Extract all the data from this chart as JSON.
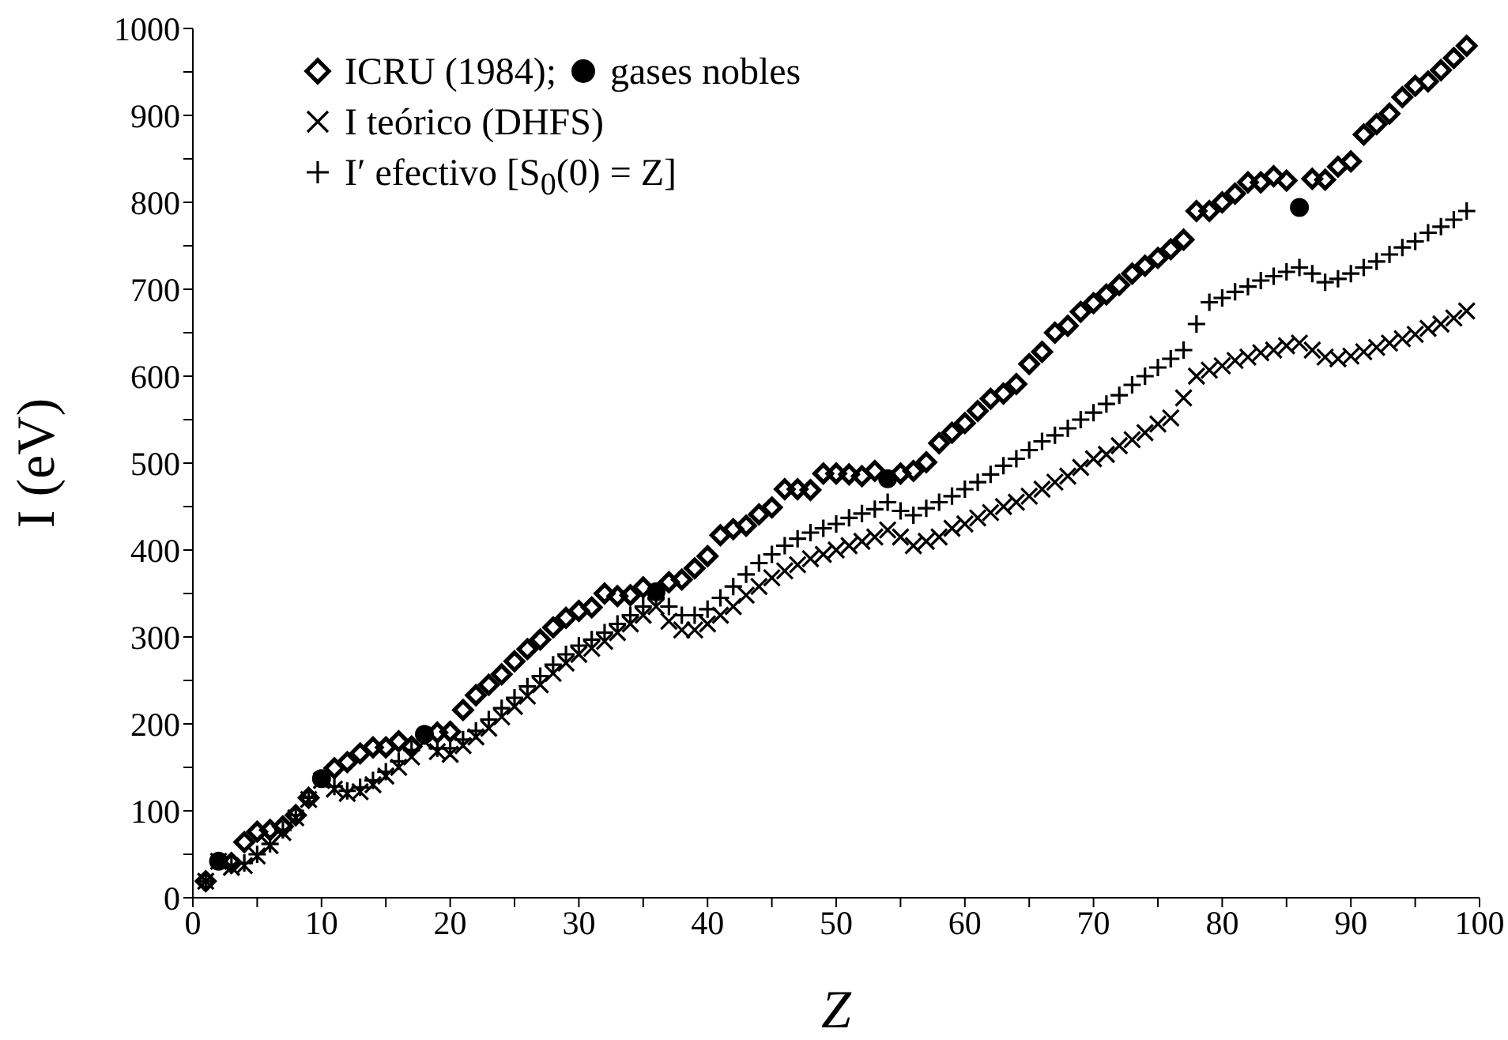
{
  "chart_data": {
    "type": "scatter",
    "xlabel": "Z",
    "ylabel": "I (eV)",
    "xlim": [
      0,
      100
    ],
    "ylim": [
      0,
      1000
    ],
    "xticks": [
      0,
      {
        "value": 5,
        "label": null
      },
      10,
      {
        "value": 15,
        "label": null
      },
      20,
      {
        "value": 25,
        "label": null
      },
      30,
      {
        "value": 35,
        "label": null
      },
      40,
      {
        "value": 45,
        "label": null
      },
      50,
      {
        "value": 55,
        "label": null
      },
      60,
      {
        "value": 65,
        "label": null
      },
      70,
      {
        "value": 75,
        "label": null
      },
      80,
      {
        "value": 85,
        "label": null
      },
      90,
      {
        "value": 95,
        "label": null
      },
      100
    ],
    "yticks": [
      0,
      {
        "value": 50,
        "label": null
      },
      100,
      {
        "value": 150,
        "label": null
      },
      200,
      {
        "value": 250,
        "label": null
      },
      300,
      {
        "value": 350,
        "label": null
      },
      400,
      {
        "value": 450,
        "label": null
      },
      500,
      {
        "value": 550,
        "label": null
      },
      600,
      {
        "value": 650,
        "label": null
      },
      700,
      {
        "value": 750,
        "label": null
      },
      800,
      {
        "value": 850,
        "label": null
      },
      900,
      {
        "value": 950,
        "label": null
      },
      1000
    ],
    "grid": false,
    "legend": "top left",
    "series": [
      {
        "name": "ICRU (1984);",
        "color": "#000000",
        "marker": "diamond",
        "x": [
          1,
          3,
          4,
          5,
          6,
          7,
          8,
          9,
          11,
          12,
          13,
          14,
          15,
          16,
          17,
          19,
          20,
          21,
          22,
          23,
          24,
          25,
          26,
          27,
          28,
          29,
          30,
          31,
          32,
          33,
          34,
          35,
          37,
          38,
          39,
          40,
          41,
          42,
          43,
          44,
          45,
          46,
          47,
          48,
          49,
          50,
          51,
          52,
          53,
          55,
          56,
          57,
          58,
          59,
          60,
          61,
          62,
          63,
          64,
          65,
          66,
          67,
          68,
          69,
          70,
          71,
          72,
          73,
          74,
          75,
          76,
          77,
          78,
          79,
          80,
          81,
          82,
          83,
          84,
          85,
          87,
          88,
          89,
          90,
          91,
          92,
          93,
          94,
          95,
          96,
          97,
          98,
          99
        ],
        "values": [
          19,
          40,
          64,
          76,
          78,
          82,
          95,
          115,
          149,
          156,
          166,
          173,
          173,
          180,
          174,
          190,
          191,
          216,
          233,
          245,
          257,
          272,
          286,
          297,
          311,
          322,
          330,
          334,
          350,
          347,
          348,
          357,
          363,
          366,
          379,
          393,
          417,
          424,
          428,
          441,
          449,
          470,
          470,
          469,
          488,
          488,
          487,
          485,
          491,
          488,
          491,
          501,
          523,
          535,
          546,
          560,
          574,
          580,
          591,
          614,
          628,
          650,
          658,
          674,
          684,
          694,
          705,
          718,
          727,
          736,
          746,
          757,
          790,
          790,
          800,
          810,
          823,
          823,
          830,
          825,
          827,
          826,
          841,
          847,
          878,
          890,
          902,
          921,
          934,
          939,
          952,
          966,
          980
        ]
      },
      {
        "name": "gases nobles",
        "color": "#000000",
        "marker": "circle",
        "x": [
          2,
          10,
          18,
          36,
          54,
          86
        ],
        "values": [
          42,
          137,
          188,
          352,
          482,
          794
        ]
      },
      {
        "name": "I teórico (DHFS)",
        "color": "#000000",
        "marker": "x",
        "x": [
          1,
          2,
          3,
          4,
          5,
          6,
          7,
          8,
          9,
          10,
          11,
          12,
          13,
          14,
          15,
          16,
          17,
          18,
          19,
          20,
          21,
          22,
          23,
          24,
          25,
          26,
          27,
          28,
          29,
          30,
          31,
          32,
          33,
          34,
          35,
          36,
          37,
          38,
          39,
          40,
          41,
          42,
          43,
          44,
          45,
          46,
          47,
          48,
          49,
          50,
          51,
          52,
          53,
          54,
          55,
          56,
          57,
          58,
          59,
          60,
          61,
          62,
          63,
          64,
          65,
          66,
          67,
          68,
          69,
          70,
          71,
          72,
          73,
          74,
          75,
          76,
          77,
          78,
          79,
          80,
          81,
          82,
          83,
          84,
          85,
          86,
          87,
          88,
          89,
          90,
          91,
          92,
          93,
          94,
          95,
          96,
          97,
          98,
          99
        ],
        "values": [
          19,
          42,
          35,
          37,
          48,
          60,
          75,
          92,
          113,
          135,
          125,
          120,
          122,
          130,
          140,
          150,
          162,
          180,
          168,
          165,
          175,
          185,
          195,
          208,
          220,
          232,
          245,
          258,
          270,
          280,
          287,
          295,
          305,
          315,
          325,
          335,
          318,
          308,
          308,
          315,
          325,
          335,
          348,
          358,
          368,
          376,
          383,
          390,
          395,
          400,
          405,
          410,
          415,
          423,
          415,
          405,
          410,
          415,
          425,
          430,
          437,
          443,
          450,
          455,
          462,
          470,
          478,
          485,
          495,
          505,
          510,
          520,
          527,
          535,
          545,
          552,
          575,
          600,
          607,
          612,
          618,
          622,
          627,
          630,
          635,
          638,
          630,
          622,
          620,
          623,
          628,
          633,
          638,
          643,
          648,
          655,
          660,
          667,
          675
        ]
      },
      {
        "name": "I′ efectivo [S$_{0}$(0) = Z]",
        "color": "#000000",
        "marker": "cross",
        "x": [
          1,
          2,
          3,
          4,
          5,
          6,
          7,
          8,
          9,
          10,
          11,
          12,
          13,
          14,
          15,
          16,
          17,
          18,
          19,
          20,
          21,
          22,
          23,
          24,
          25,
          26,
          27,
          28,
          29,
          30,
          31,
          32,
          33,
          34,
          35,
          36,
          37,
          38,
          39,
          40,
          41,
          42,
          43,
          44,
          45,
          46,
          47,
          48,
          49,
          50,
          51,
          52,
          53,
          54,
          55,
          56,
          57,
          58,
          59,
          60,
          61,
          62,
          63,
          64,
          65,
          66,
          67,
          68,
          69,
          70,
          71,
          72,
          73,
          74,
          75,
          76,
          77,
          78,
          79,
          80,
          81,
          82,
          83,
          84,
          85,
          86,
          87,
          88,
          89,
          90,
          91,
          92,
          93,
          94,
          95,
          96,
          97,
          98,
          99
        ],
        "values": [
          19,
          null,
          38,
          40,
          50,
          62,
          78,
          95,
          115,
          null,
          128,
          123,
          127,
          135,
          145,
          157,
          170,
          186,
          172,
          172,
          182,
          192,
          205,
          218,
          230,
          243,
          255,
          268,
          280,
          290,
          297,
          305,
          315,
          325,
          335,
          345,
          335,
          325,
          325,
          332,
          345,
          358,
          372,
          385,
          395,
          405,
          413,
          420,
          425,
          430,
          437,
          442,
          447,
          455,
          445,
          440,
          448,
          455,
          462,
          470,
          478,
          487,
          497,
          505,
          515,
          525,
          532,
          540,
          550,
          558,
          568,
          578,
          590,
          600,
          610,
          620,
          630,
          660,
          685,
          690,
          697,
          703,
          710,
          715,
          720,
          725,
          718,
          708,
          712,
          718,
          725,
          732,
          740,
          748,
          755,
          765,
          772,
          780,
          790
        ]
      }
    ]
  }
}
